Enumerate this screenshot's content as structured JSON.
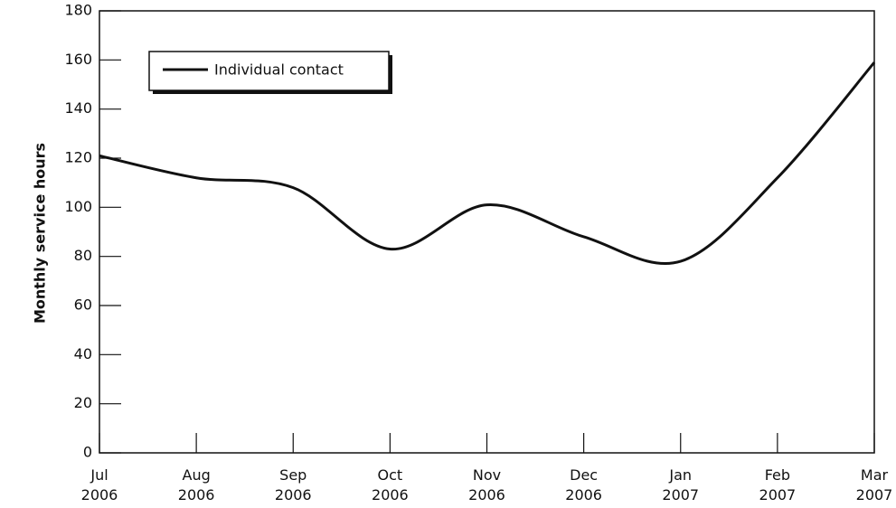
{
  "chart_data": {
    "type": "line",
    "y_label": "Monthly service hours",
    "categories": [
      "Jul\n2006",
      "Aug\n2006",
      "Sep\n2006",
      "Oct\n2006",
      "Nov\n2006",
      "Dec\n2006",
      "Jan\n2007",
      "Feb\n2007",
      "Mar\n2007"
    ],
    "series": [
      {
        "name": "Individual contact",
        "color": "#111111",
        "values": [
          121,
          112,
          108,
          83,
          101,
          88,
          78,
          112,
          159
        ]
      }
    ],
    "ylim": [
      0,
      180
    ],
    "yticks": [
      0,
      20,
      40,
      60,
      80,
      100,
      120,
      140,
      160,
      180
    ],
    "smooth": true,
    "legend": "upper left",
    "grid": false
  }
}
